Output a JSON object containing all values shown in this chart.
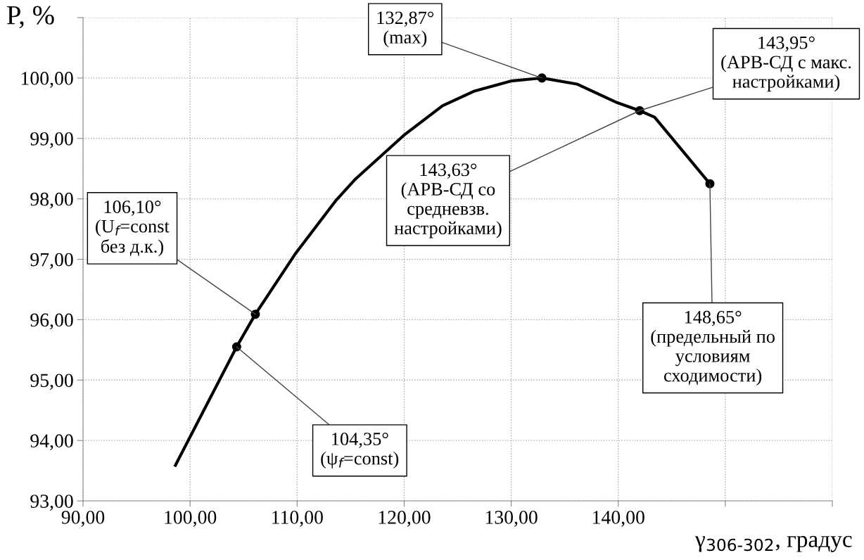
{
  "chart_data": {
    "type": "line",
    "xlabel": "γ$_{306-302}$, градус",
    "ylabel": "P, %",
    "xlim": [
      90,
      160
    ],
    "xticks": [
      {
        "value": 90,
        "label": "90,00"
      },
      {
        "value": 100,
        "label": "100,00"
      },
      {
        "value": 110,
        "label": "110,00"
      },
      {
        "value": 120,
        "label": "120,00"
      },
      {
        "value": 130,
        "label": "130,00"
      },
      {
        "value": 140,
        "label": "140,00"
      },
      {
        "value": 150,
        "label": null
      },
      {
        "value": 160,
        "label": null
      }
    ],
    "ylim": [
      93,
      101
    ],
    "yticks": [
      {
        "value": 93,
        "label": "93,00"
      },
      {
        "value": 94,
        "label": "94,00"
      },
      {
        "value": 95,
        "label": "95,00"
      },
      {
        "value": 96,
        "label": "96,00"
      },
      {
        "value": 97,
        "label": "97,00"
      },
      {
        "value": 98,
        "label": "98,00"
      },
      {
        "value": 99,
        "label": "99,00"
      },
      {
        "value": 100,
        "label": "100,00"
      },
      {
        "value": 101,
        "label": null
      }
    ],
    "grid": true,
    "legend": false,
    "series": [
      {
        "color": "#000000",
        "marker": "none",
        "x": [
          98.63,
          104.35,
          106.1,
          109.87,
          113.66,
          115.41,
          119.96,
          123.58,
          126.5,
          129.97,
          132.87,
          136.13,
          139.92,
          142.0,
          143.4,
          148.56
        ],
        "values": [
          93.59,
          95.55,
          96.09,
          97.1,
          97.98,
          98.32,
          99.05,
          99.54,
          99.78,
          99.95,
          100.0,
          99.9,
          99.59,
          99.46,
          99.35,
          98.25
        ]
      },
      {
        "type": "scatter",
        "color": "#000000",
        "marker": "circle",
        "x": [
          104.35,
          106.1,
          132.87,
          142.0,
          148.56
        ],
        "values": [
          95.55,
          96.09,
          100.0,
          99.46,
          98.25
        ]
      }
    ],
    "annotations": [
      {
        "text": "106,10°\n(U$_{f}$=const\nбез д.к.)",
        "x": 106.1,
        "y": 96.09
      },
      {
        "text": "104,35°\n(ψ$_{f}$=const)",
        "x": 104.35,
        "y": 95.55
      },
      {
        "text": "132,87°\n(max)",
        "x": 132.87,
        "y": 100.0
      },
      {
        "text": "143,95°\n(АРВ-СД с макс.\nнастройками)",
        "x": 142.0,
        "y": 99.46
      },
      {
        "text": "143,63°\n(АРВ-СД со\nсредневзв.\nнастройками)",
        "x": 142.0,
        "y": 99.46
      },
      {
        "text": "148,65°\n(предельный по\nусловиям\nсходимости)",
        "x": 148.56,
        "y": 98.25
      }
    ]
  }
}
